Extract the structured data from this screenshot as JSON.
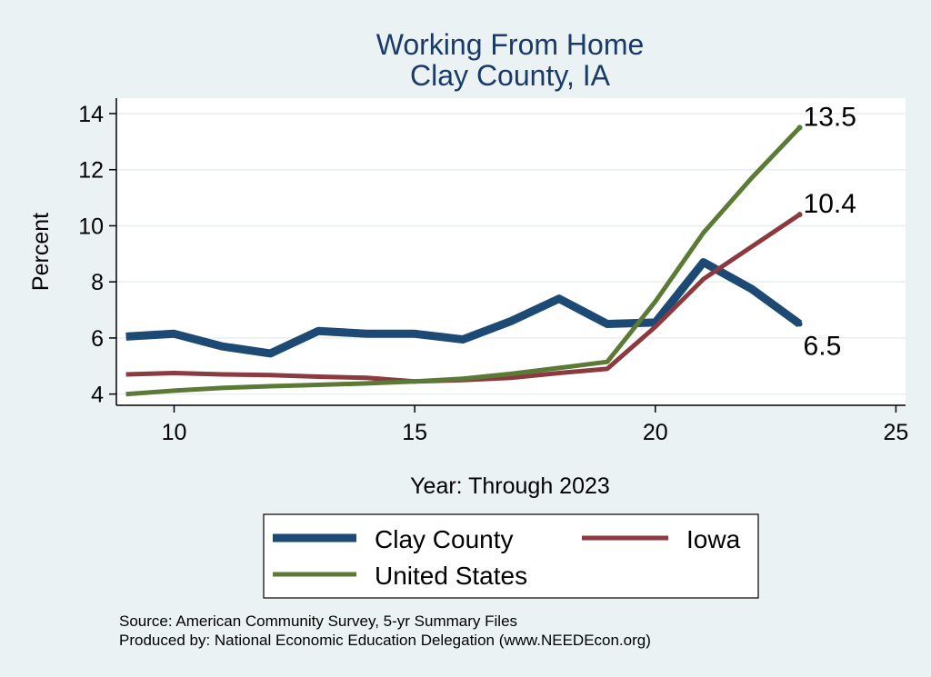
{
  "chart_data": {
    "type": "line",
    "title": [
      "Working From Home",
      "Clay County, IA"
    ],
    "xlabel": "Year: Through 2023",
    "ylabel": "Percent",
    "xlim": [
      8.8,
      25.2
    ],
    "ylim": [
      3.6,
      14.55
    ],
    "xticks": [
      10,
      15,
      20,
      25
    ],
    "yticks": [
      4,
      6,
      8,
      10,
      12,
      14
    ],
    "x": [
      9,
      10,
      11,
      12,
      13,
      14,
      15,
      16,
      17,
      18,
      19,
      20,
      21,
      22,
      23
    ],
    "series": [
      {
        "name": "Clay County",
        "color": "#1c4a74",
        "values": [
          6.05,
          6.15,
          5.7,
          5.45,
          6.25,
          6.15,
          6.15,
          5.95,
          6.6,
          7.4,
          6.5,
          6.55,
          8.7,
          7.75,
          6.5
        ],
        "end_label": "6.5"
      },
      {
        "name": "Iowa",
        "color": "#8b3a3f",
        "values": [
          4.7,
          4.75,
          4.7,
          4.68,
          4.62,
          4.58,
          4.45,
          4.5,
          4.58,
          4.75,
          4.9,
          6.4,
          8.1,
          9.25,
          10.4
        ],
        "end_label": "10.4"
      },
      {
        "name": "United States",
        "color": "#5b7a35",
        "values": [
          4.0,
          4.12,
          4.22,
          4.28,
          4.33,
          4.38,
          4.45,
          4.55,
          4.72,
          4.93,
          5.15,
          7.3,
          9.75,
          11.7,
          13.5
        ],
        "end_label": "13.5"
      }
    ],
    "legend": {
      "placement": "bottom",
      "entries": [
        "Clay County",
        "Iowa",
        "United States"
      ]
    },
    "notes": [
      "Source: American Community Survey, 5-yr Summary Files",
      "Produced by: National Economic Education Delegation (www.NEEDEcon.org)"
    ],
    "grid": true
  },
  "colors": {
    "background": "#eaf2f3",
    "plot_background": "#ffffff",
    "grid": "#e8eef0",
    "title": "#1a3a6a"
  }
}
